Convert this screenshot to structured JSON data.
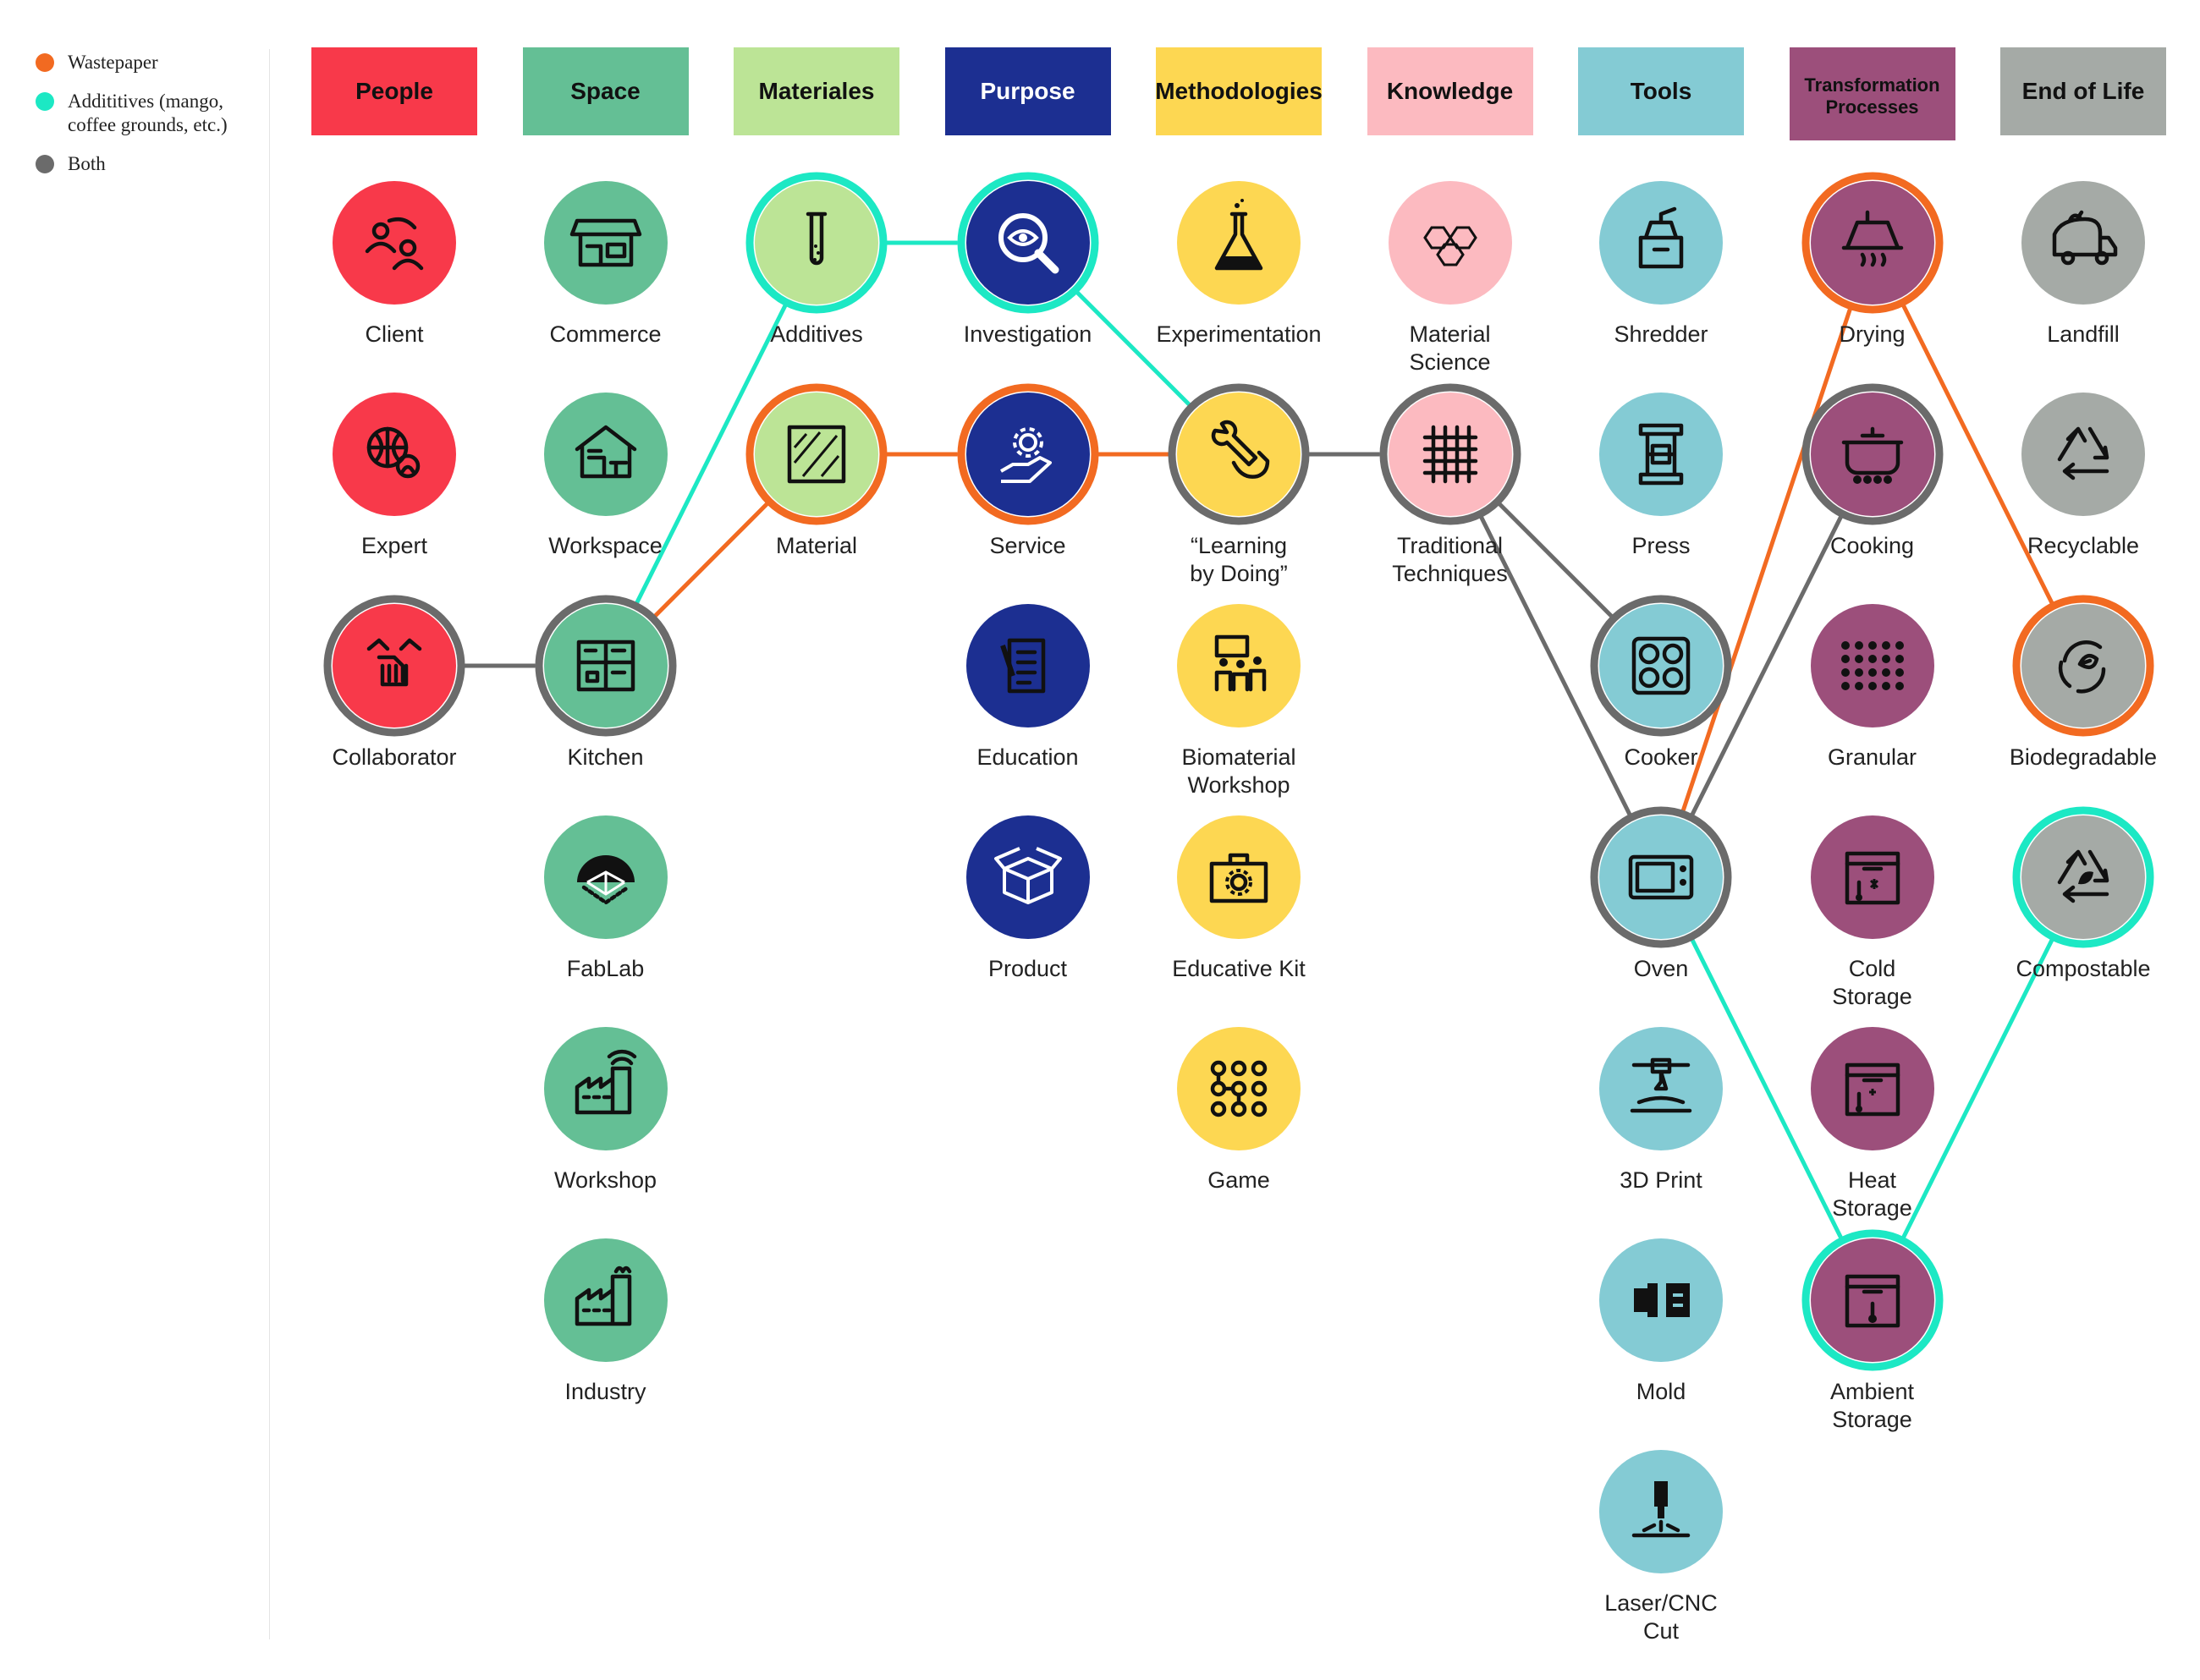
{
  "legend": [
    {
      "label": "Wastepaper",
      "color": "#f26a21"
    },
    {
      "label": "Addititives (mango, coffee grounds, etc.)",
      "color": "#1ce8c4"
    },
    {
      "label": "Both",
      "color": "#6b6b6b"
    }
  ],
  "columns": [
    {
      "label": "People",
      "color": "#f8394a",
      "text_color": "#111111"
    },
    {
      "label": "Space",
      "color": "#64bf95",
      "text_color": "#111111"
    },
    {
      "label": "Materiales",
      "color": "#bce496",
      "text_color": "#111111"
    },
    {
      "label": "Purpose",
      "color": "#1c2f91",
      "text_color": "#ffffff"
    },
    {
      "label": "Methodologies",
      "color": "#fdd752",
      "text_color": "#111111"
    },
    {
      "label": "Knowledge",
      "color": "#fcbac0",
      "text_color": "#111111"
    },
    {
      "label": "Tools",
      "color": "#84cbd4",
      "text_color": "#111111"
    },
    {
      "label": "Transformation Processes",
      "color": "#9c4f7b",
      "text_color": "#111111"
    },
    {
      "label": "End of Life",
      "color": "#a5aaa6",
      "text_color": "#111111"
    }
  ],
  "nodes": [
    {
      "id": "client",
      "col": 0,
      "row": 0,
      "label": "Client",
      "icon": "people-exchange-icon",
      "ring": null
    },
    {
      "id": "expert",
      "col": 0,
      "row": 1,
      "label": "Expert",
      "icon": "globe-person-icon",
      "ring": null
    },
    {
      "id": "collaborator",
      "col": 0,
      "row": 2,
      "label": "Collaborator",
      "icon": "handshake-icon",
      "ring": "#6b6b6b"
    },
    {
      "id": "commerce",
      "col": 1,
      "row": 0,
      "label": "Commerce",
      "icon": "shop-icon",
      "ring": null
    },
    {
      "id": "workspace",
      "col": 1,
      "row": 1,
      "label": "Workspace",
      "icon": "home-office-icon",
      "ring": null
    },
    {
      "id": "kitchen",
      "col": 1,
      "row": 2,
      "label": "Kitchen",
      "icon": "kitchen-icon",
      "ring": "#6b6b6b"
    },
    {
      "id": "fablab",
      "col": 1,
      "row": 3,
      "label": "FabLab",
      "icon": "dome-icon",
      "ring": null
    },
    {
      "id": "workshop",
      "col": 1,
      "row": 4,
      "label": "Workshop",
      "icon": "factory-wifi-icon",
      "ring": null
    },
    {
      "id": "industry",
      "col": 1,
      "row": 5,
      "label": "Industry",
      "icon": "factory-icon",
      "ring": null
    },
    {
      "id": "additives",
      "col": 2,
      "row": 0,
      "label": "Additives",
      "icon": "test-tube-icon",
      "ring": "#1ce8c4"
    },
    {
      "id": "material",
      "col": 2,
      "row": 1,
      "label": "Material",
      "icon": "texture-square-icon",
      "ring": "#f26a21"
    },
    {
      "id": "investigation",
      "col": 3,
      "row": 0,
      "label": "Investigation",
      "icon": "eye-magnifier-icon",
      "ring": "#1ce8c4"
    },
    {
      "id": "service",
      "col": 3,
      "row": 1,
      "label": "Service",
      "icon": "gear-hand-icon",
      "ring": "#f26a21"
    },
    {
      "id": "education",
      "col": 3,
      "row": 2,
      "label": "Education",
      "icon": "document-pen-icon",
      "ring": null
    },
    {
      "id": "product",
      "col": 3,
      "row": 3,
      "label": "Product",
      "icon": "open-box-icon",
      "ring": null
    },
    {
      "id": "experimentation",
      "col": 4,
      "row": 0,
      "label": "Experimentation",
      "icon": "flask-icon",
      "ring": null
    },
    {
      "id": "learning",
      "col": 4,
      "row": 1,
      "label": "“Learning\nby Doing”",
      "icon": "wrench-hand-icon",
      "ring": "#6b6b6b"
    },
    {
      "id": "biomaterial",
      "col": 4,
      "row": 2,
      "label": "Biomaterial\nWorkshop",
      "icon": "group-board-icon",
      "ring": null
    },
    {
      "id": "educativekit",
      "col": 4,
      "row": 3,
      "label": "Educative Kit",
      "icon": "toolbox-gear-icon",
      "ring": null
    },
    {
      "id": "game",
      "col": 4,
      "row": 4,
      "label": "Game",
      "icon": "dot-pattern-icon",
      "ring": null
    },
    {
      "id": "materialscience",
      "col": 5,
      "row": 0,
      "label": "Material\nScience",
      "icon": "hexagon-molecule-icon",
      "ring": null
    },
    {
      "id": "traditional",
      "col": 5,
      "row": 1,
      "label": "Traditional\nTechniques",
      "icon": "weave-icon",
      "ring": "#6b6b6b"
    },
    {
      "id": "shredder",
      "col": 6,
      "row": 0,
      "label": "Shredder",
      "icon": "grinder-icon",
      "ring": null
    },
    {
      "id": "press",
      "col": 6,
      "row": 1,
      "label": "Press",
      "icon": "press-icon",
      "ring": null
    },
    {
      "id": "cooker",
      "col": 6,
      "row": 2,
      "label": "Cooker",
      "icon": "stovetop-icon",
      "ring": "#6b6b6b"
    },
    {
      "id": "oven",
      "col": 6,
      "row": 3,
      "label": "Oven",
      "icon": "microwave-icon",
      "ring": "#6b6b6b"
    },
    {
      "id": "print3d",
      "col": 6,
      "row": 4,
      "label": "3D Print",
      "icon": "printer-3d-icon",
      "ring": null
    },
    {
      "id": "mold",
      "col": 6,
      "row": 5,
      "label": "Mold",
      "icon": "mold-icon",
      "ring": null
    },
    {
      "id": "lasercut",
      "col": 6,
      "row": 6,
      "label": "Laser/CNC\nCut",
      "icon": "laser-icon",
      "ring": null
    },
    {
      "id": "drying",
      "col": 7,
      "row": 0,
      "label": "Drying",
      "icon": "hood-icon",
      "ring": "#f26a21"
    },
    {
      "id": "cooking",
      "col": 7,
      "row": 1,
      "label": "Cooking",
      "icon": "pot-icon",
      "ring": "#6b6b6b"
    },
    {
      "id": "granular",
      "col": 7,
      "row": 2,
      "label": "Granular",
      "icon": "dot-grid-icon",
      "ring": null
    },
    {
      "id": "coldstorage",
      "col": 7,
      "row": 3,
      "label": "Cold\nStorage",
      "icon": "cold-box-icon",
      "ring": null
    },
    {
      "id": "heatstorage",
      "col": 7,
      "row": 4,
      "label": "Heat\nStorage",
      "icon": "heat-box-icon",
      "ring": null
    },
    {
      "id": "ambientstorage",
      "col": 7,
      "row": 5,
      "label": "Ambient\nStorage",
      "icon": "thermo-box-icon",
      "ring": "#1ce8c4"
    },
    {
      "id": "landfill",
      "col": 8,
      "row": 0,
      "label": "Landfill",
      "icon": "garbage-truck-icon",
      "ring": null
    },
    {
      "id": "recyclable",
      "col": 8,
      "row": 1,
      "label": "Recyclable",
      "icon": "recycle-icon",
      "ring": null
    },
    {
      "id": "biodegradable",
      "col": 8,
      "row": 2,
      "label": "Biodegradable",
      "icon": "leaf-cycle-icon",
      "ring": "#f26a21"
    },
    {
      "id": "compostable",
      "col": 8,
      "row": 3,
      "label": "Compostable",
      "icon": "recycle-leaf-icon",
      "ring": "#1ce8c4"
    }
  ],
  "links": [
    {
      "from": "collaborator",
      "to": "kitchen",
      "color": "#6b6b6b"
    },
    {
      "from": "kitchen",
      "to": "additives",
      "color": "#1ce8c4"
    },
    {
      "from": "kitchen",
      "to": "material",
      "color": "#f26a21"
    },
    {
      "from": "additives",
      "to": "investigation",
      "color": "#1ce8c4"
    },
    {
      "from": "material",
      "to": "service",
      "color": "#f26a21"
    },
    {
      "from": "investigation",
      "to": "learning",
      "color": "#1ce8c4"
    },
    {
      "from": "service",
      "to": "learning",
      "color": "#f26a21"
    },
    {
      "from": "learning",
      "to": "traditional",
      "color": "#6b6b6b"
    },
    {
      "from": "traditional",
      "to": "cooker",
      "color": "#6b6b6b"
    },
    {
      "from": "traditional",
      "to": "oven",
      "color": "#6b6b6b"
    },
    {
      "from": "oven",
      "to": "drying",
      "color": "#f26a21"
    },
    {
      "from": "oven",
      "to": "cooking",
      "color": "#6b6b6b"
    },
    {
      "from": "oven",
      "to": "ambientstorage",
      "color": "#1ce8c4"
    },
    {
      "from": "drying",
      "to": "biodegradable",
      "color": "#f26a21"
    },
    {
      "from": "ambientstorage",
      "to": "compostable",
      "color": "#1ce8c4"
    }
  ]
}
